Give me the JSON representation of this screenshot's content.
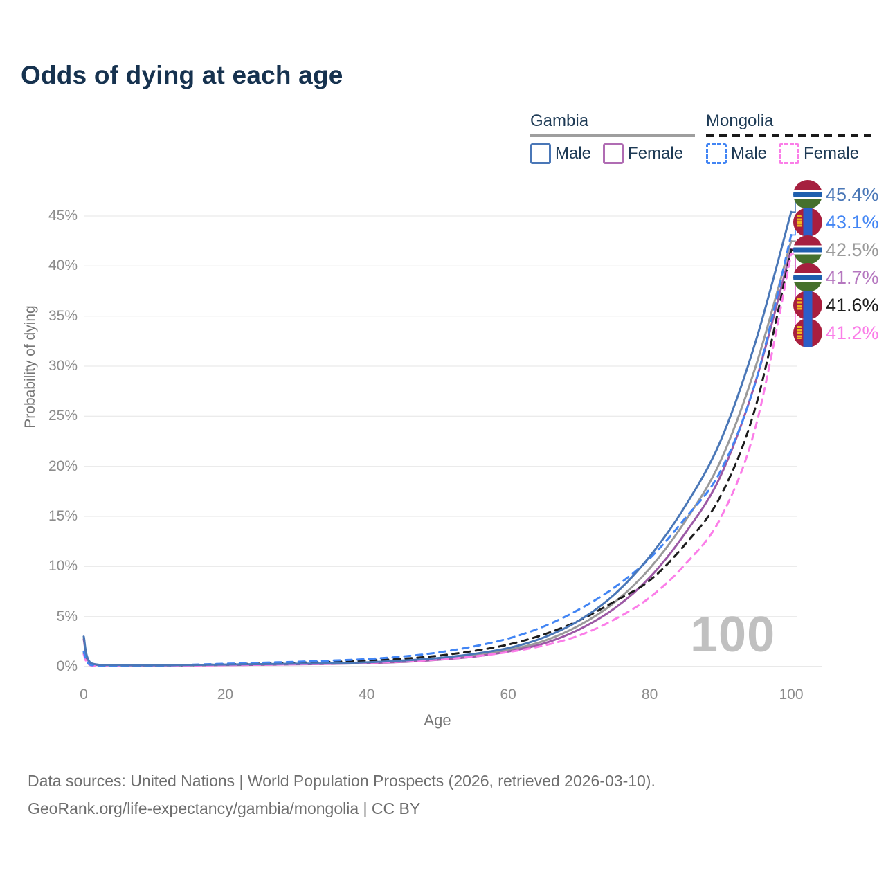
{
  "title": "Odds of dying at each age",
  "watermark": "100",
  "axes": {
    "x": {
      "label": "Age",
      "tick_labels": [
        "0",
        "20",
        "40",
        "60",
        "80",
        "100"
      ],
      "tick_values": [
        0,
        20,
        40,
        60,
        80,
        100
      ],
      "range": [
        0,
        100
      ]
    },
    "y": {
      "label": "Probability of dying",
      "tick_labels": [
        "0%",
        "5%",
        "10%",
        "15%",
        "20%",
        "25%",
        "30%",
        "35%",
        "40%",
        "45%"
      ],
      "tick_values": [
        0,
        5,
        10,
        15,
        20,
        25,
        30,
        35,
        40,
        45
      ],
      "range": [
        0,
        47
      ]
    }
  },
  "legend": {
    "groups": [
      {
        "label": "Gambia",
        "line_style": "solid",
        "line_color": "#9e9e9e",
        "items": [
          {
            "label": "Male",
            "color": "#4a77b7",
            "dashed": false
          },
          {
            "label": "Female",
            "color": "#b06cb3",
            "dashed": false
          }
        ]
      },
      {
        "label": "Mongolia",
        "line_style": "dashed",
        "line_color": "#1a1a1a",
        "items": [
          {
            "label": "Male",
            "color": "#4285f4",
            "dashed": true
          },
          {
            "label": "Female",
            "color": "#fb7de8",
            "dashed": true
          }
        ]
      }
    ]
  },
  "chart_data": {
    "type": "line",
    "title": "Odds of dying at each age",
    "xlabel": "Age",
    "ylabel": "Probability of dying",
    "y_unit": "percent",
    "xlim": [
      0,
      100
    ],
    "ylim": [
      0,
      47
    ],
    "grid": true,
    "legend_position": "top-right",
    "x": [
      0,
      1,
      5,
      10,
      15,
      20,
      25,
      30,
      35,
      40,
      45,
      50,
      55,
      60,
      65,
      70,
      75,
      80,
      85,
      90,
      95,
      100
    ],
    "series": [
      {
        "id": "gambia-male",
        "name": "Gambia Male",
        "country": "Gambia",
        "sex": "Male",
        "style": "solid",
        "color": "#4a77b7",
        "values": [
          3.0,
          0.35,
          0.15,
          0.13,
          0.16,
          0.2,
          0.24,
          0.28,
          0.33,
          0.42,
          0.6,
          0.85,
          1.25,
          1.85,
          2.9,
          4.6,
          7.2,
          11.0,
          16.0,
          22.5,
          32.5,
          45.4
        ]
      },
      {
        "id": "gambia-all",
        "name": "Gambia (both sexes)",
        "country": "Gambia",
        "sex": "All",
        "style": "solid",
        "color": "#9a9a9a",
        "values": [
          2.85,
          0.32,
          0.14,
          0.12,
          0.14,
          0.18,
          0.21,
          0.25,
          0.3,
          0.38,
          0.52,
          0.76,
          1.1,
          1.65,
          2.55,
          4.1,
          6.4,
          9.8,
          14.5,
          20.5,
          30.0,
          42.5
        ]
      },
      {
        "id": "gambia-female",
        "name": "Gambia Female",
        "country": "Gambia",
        "sex": "Female",
        "style": "solid",
        "color": "#9c59a5",
        "values": [
          2.7,
          0.3,
          0.13,
          0.11,
          0.13,
          0.15,
          0.18,
          0.22,
          0.27,
          0.34,
          0.46,
          0.68,
          0.98,
          1.5,
          2.3,
          3.7,
          5.8,
          8.9,
          13.3,
          19.0,
          28.5,
          41.7
        ]
      },
      {
        "id": "mongolia-male",
        "name": "Mongolia Male",
        "country": "Mongolia",
        "sex": "Male",
        "style": "dashed",
        "color": "#4285f4",
        "values": [
          1.5,
          0.15,
          0.08,
          0.09,
          0.18,
          0.28,
          0.38,
          0.48,
          0.6,
          0.75,
          1.0,
          1.4,
          2.0,
          2.8,
          4.0,
          5.7,
          7.9,
          10.8,
          14.8,
          19.5,
          28.5,
          43.1
        ]
      },
      {
        "id": "mongolia-all",
        "name": "Mongolia (both sexes)",
        "country": "Mongolia",
        "sex": "All",
        "style": "dashed",
        "color": "#1c1c1c",
        "values": [
          1.35,
          0.14,
          0.07,
          0.08,
          0.14,
          0.22,
          0.3,
          0.38,
          0.47,
          0.6,
          0.78,
          1.08,
          1.55,
          2.2,
          3.2,
          4.6,
          6.5,
          8.6,
          12.2,
          17.0,
          26.0,
          41.6
        ]
      },
      {
        "id": "mongolia-female",
        "name": "Mongolia Female",
        "country": "Mongolia",
        "sex": "Female",
        "style": "dashed",
        "color": "#fb7de8",
        "values": [
          1.2,
          0.12,
          0.06,
          0.07,
          0.1,
          0.14,
          0.18,
          0.23,
          0.29,
          0.37,
          0.5,
          0.7,
          1.0,
          1.45,
          2.1,
          3.1,
          4.7,
          6.9,
          10.2,
          14.8,
          24.0,
          41.2
        ]
      }
    ],
    "end_labels": [
      {
        "text": "45.4%",
        "series": "gambia-male",
        "flag": "gambia",
        "color": "#4a77b7"
      },
      {
        "text": "43.1%",
        "series": "mongolia-male",
        "flag": "mongolia",
        "color": "#4285f4"
      },
      {
        "text": "42.5%",
        "series": "gambia-all",
        "flag": "gambia",
        "color": "#9a9a9a"
      },
      {
        "text": "41.7%",
        "series": "gambia-female",
        "flag": "gambia",
        "color": "#b577bf"
      },
      {
        "text": "41.6%",
        "series": "mongolia-all",
        "flag": "mongolia",
        "color": "#1c1c1c"
      },
      {
        "text": "41.2%",
        "series": "mongolia-female",
        "flag": "mongolia",
        "color": "#fb7de8"
      }
    ]
  },
  "footer": {
    "line1": "Data sources: United Nations | World Population Prospects (2026, retrieved 2026-03-10).",
    "line2": "GeoRank.org/life-expectancy/gambia/mongolia | CC BY"
  }
}
